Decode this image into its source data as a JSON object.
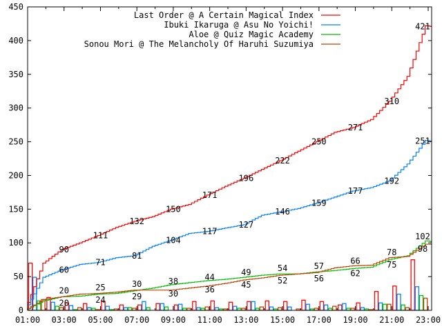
{
  "chart_data": {
    "type": "line",
    "title": "",
    "xlabel": "",
    "ylabel": "",
    "ylim": [
      0,
      450
    ],
    "yticks": [
      0,
      50,
      100,
      150,
      200,
      250,
      300,
      350,
      400,
      450
    ],
    "xlim_hours": [
      1,
      23.2
    ],
    "xtick_labels": [
      "01:00",
      "03:00",
      "05:00",
      "07:00",
      "09:00",
      "11:00",
      "13:00",
      "15:00",
      "17:00",
      "19:00",
      "21:00",
      "23:00"
    ],
    "legend_position": "top-right",
    "bar_hours": [
      "01",
      "02",
      "03",
      "04",
      "05",
      "06",
      "07",
      "08",
      "09",
      "10",
      "11",
      "12",
      "13",
      "14",
      "15",
      "16",
      "17",
      "18",
      "19",
      "20",
      "21",
      "22"
    ],
    "label_hours": [
      "03:00",
      "05:00",
      "07:00",
      "09:00",
      "11:00",
      "13:00",
      "15:00",
      "17:00",
      "19:00",
      "21:00",
      "end"
    ],
    "series": [
      {
        "name": "Last Order @ A Certain Magical Index",
        "color": "#ff0000",
        "hourly_counts": [
          70,
          19,
          11,
          10,
          13,
          8,
          8,
          10,
          8,
          13,
          14,
          12,
          13,
          14,
          13,
          15,
          13,
          8,
          11,
          28,
          36,
          75
        ],
        "cumulative_labels": [
          90,
          111,
          132,
          150,
          171,
          196,
          222,
          250,
          271,
          310,
          421
        ]
      },
      {
        "name": "Ibuki Ikaruga @ Asu No Yoichi!",
        "color": "#0080ff",
        "hourly_counts": [
          49,
          12,
          7,
          4,
          6,
          4,
          13,
          10,
          9,
          4,
          4,
          6,
          13,
          5,
          5,
          9,
          8,
          10,
          4,
          11,
          24,
          35
        ],
        "cumulative_labels": [
          60,
          71,
          81,
          104,
          117,
          127,
          146,
          159,
          177,
          192,
          251
        ]
      },
      {
        "name": "Aloe @ Quiz Magic Academy",
        "color": "#00c000",
        "hourly_counts": [
          14,
          6,
          1,
          3,
          1,
          4,
          4,
          5,
          3,
          3,
          2,
          3,
          3,
          2,
          0,
          2,
          3,
          3,
          2,
          9,
          8,
          22
        ],
        "cumulative_labels": [
          20,
          24,
          29,
          38,
          44,
          49,
          54,
          57,
          62,
          75,
          102
        ]
      },
      {
        "name": "Sonou Mori @ The Melancholy Of Haruhi Suzumiya",
        "color": "#c04000",
        "hourly_counts": [
          16,
          4,
          4,
          1,
          2,
          3,
          0,
          0,
          3,
          5,
          2,
          3,
          5,
          4,
          2,
          3,
          6,
          3,
          1,
          9,
          4,
          18
        ],
        "cumulative_labels": [
          20,
          25,
          30,
          30,
          36,
          45,
          52,
          56,
          66,
          78,
          98
        ]
      }
    ]
  }
}
